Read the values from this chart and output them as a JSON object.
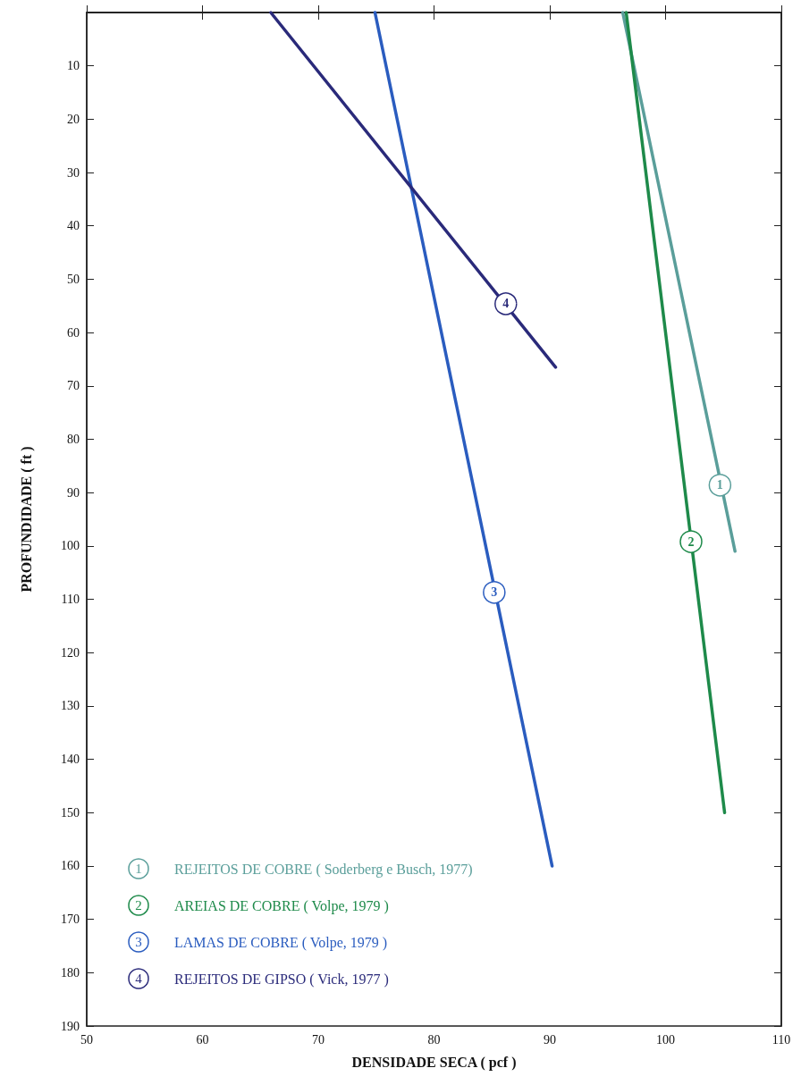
{
  "chart_data": {
    "type": "line",
    "xlabel": "DENSIDADE SECA ( pcf )",
    "ylabel": "PROFUNDIDADE ( ft )",
    "xlim": [
      50,
      110
    ],
    "xticks": [
      50,
      60,
      70,
      80,
      90,
      100,
      110
    ],
    "ylim": [
      190,
      0
    ],
    "yticks": [
      {
        "value": 0,
        "label": null
      },
      10,
      20,
      30,
      40,
      50,
      60,
      70,
      80,
      90,
      100,
      110,
      120,
      130,
      140,
      150,
      160,
      170,
      180,
      190
    ],
    "series": [
      {
        "name": "REJEITOS DE COBRE ( Soderberg e Busch, 1977)",
        "color": "#5a9e9a",
        "x": [
          96.3,
          106
        ],
        "values": [
          0,
          101
        ]
      },
      {
        "name": "AREIAS DE COBRE ( Volpe, 1979 )",
        "color": "#1e8a4a",
        "x": [
          96.6,
          105.1
        ],
        "values": [
          0,
          150
        ]
      },
      {
        "name": "LAMAS DE COBRE ( Volpe, 1979 )",
        "color": "#2a5cbf",
        "x": [
          74.9,
          90.2
        ],
        "values": [
          0,
          160
        ]
      },
      {
        "name": "REJEITOS DE GIPSO ( Vick, 1977 )",
        "color": "#2a2a7a",
        "x": [
          65.9,
          90.5
        ],
        "values": [
          0,
          66.5
        ]
      }
    ],
    "annotations": [
      {
        "text": "1",
        "x": 104.7,
        "y": 88.6
      },
      {
        "text": "2",
        "x": 102.2,
        "y": 99.2
      },
      {
        "text": "3",
        "x": 85.2,
        "y": 108.7
      },
      {
        "text": "4",
        "x": 86.2,
        "y": 54.6
      }
    ],
    "legend": "bottom left",
    "grid": false,
    "marker": "none",
    "line_style": "solid"
  }
}
